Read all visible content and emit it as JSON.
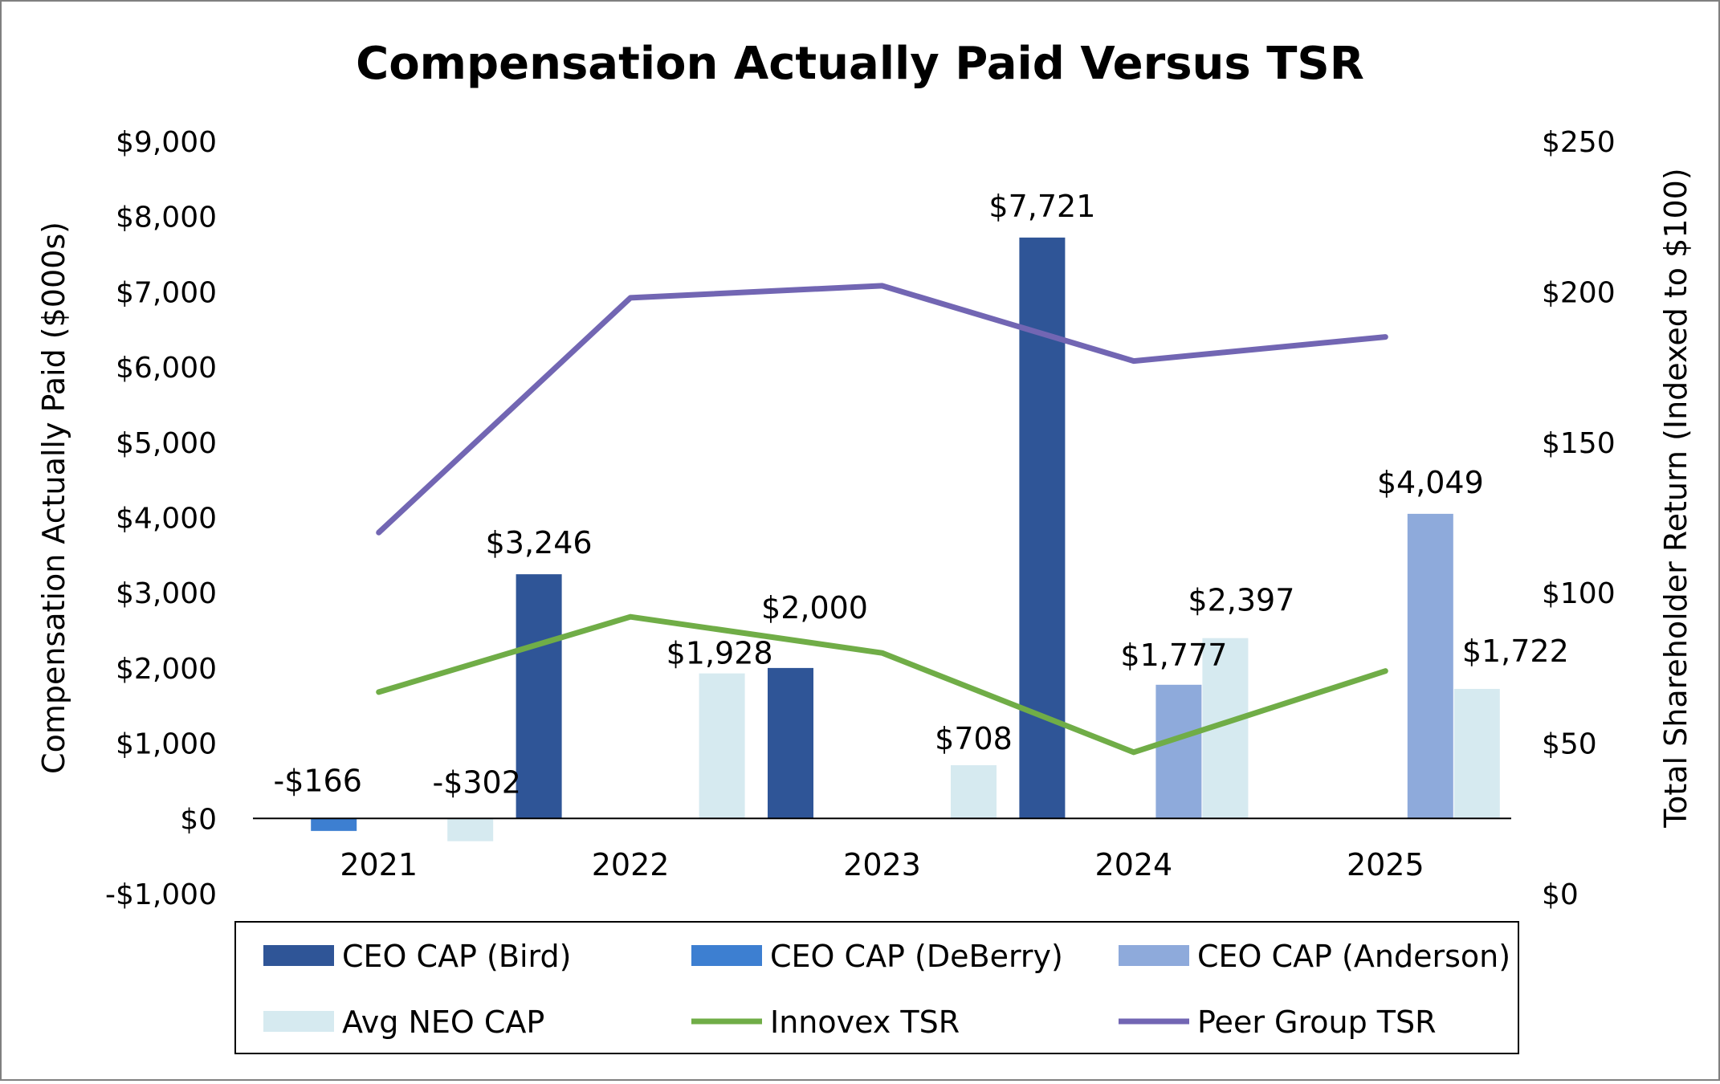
{
  "chart_data": {
    "type": "bar",
    "title": "Compensation Actually Paid Versus TSR",
    "categories": [
      "2021",
      "2022",
      "2023",
      "2024",
      "2025"
    ],
    "left_axis": {
      "label": "Compensation Actually Paid ($000s)",
      "range": [
        -1000,
        9000
      ],
      "ticks": [
        -1000,
        0,
        1000,
        2000,
        3000,
        4000,
        5000,
        6000,
        7000,
        8000,
        9000
      ],
      "tick_labels": [
        "-$1,000",
        "$0",
        "$1,000",
        "$2,000",
        "$3,000",
        "$4,000",
        "$5,000",
        "$6,000",
        "$7,000",
        "$8,000",
        "$9,000"
      ]
    },
    "right_axis": {
      "label": "Total Shareholder Return (Indexed to $100)",
      "range": [
        0,
        250
      ],
      "ticks": [
        0,
        50,
        100,
        150,
        200,
        250
      ],
      "tick_labels": [
        "$0",
        "$50",
        "$100",
        "$150",
        "$200",
        "$250"
      ]
    },
    "bar_series": [
      {
        "name": "CEO CAP (Bird)",
        "color": "#2f5597",
        "values": [
          null,
          3246,
          2000,
          7721,
          null
        ],
        "labels": [
          null,
          "$3,246",
          "$2,000",
          "$7,721",
          null
        ]
      },
      {
        "name": "CEO CAP (DeBerry)",
        "color": "#3d7fd1",
        "values": [
          -166,
          null,
          null,
          null,
          null
        ],
        "labels": [
          "-$166",
          null,
          null,
          null,
          null
        ]
      },
      {
        "name": "CEO CAP (Anderson)",
        "color": "#8eaadb",
        "values": [
          null,
          null,
          null,
          1777,
          4049
        ],
        "labels": [
          null,
          null,
          null,
          "$1,777",
          "$4,049"
        ]
      },
      {
        "name": "Avg NEO CAP",
        "color": "#d6eaf0",
        "values": [
          -302,
          1928,
          708,
          2397,
          1722
        ],
        "labels": [
          "-$302",
          "$1,928",
          "$708",
          "$2,397",
          "$1,722"
        ]
      }
    ],
    "line_series": [
      {
        "name": "Innovex TSR",
        "color": "#70ad47",
        "axis": "right",
        "values": [
          67,
          92,
          80,
          47,
          74
        ]
      },
      {
        "name": "Peer Group TSR",
        "color": "#7266b3",
        "axis": "right",
        "values": [
          120,
          198,
          202,
          177,
          185
        ]
      }
    ],
    "legend": {
      "placement": "bottom",
      "items": [
        "CEO CAP (Bird)",
        "CEO CAP (DeBerry)",
        "CEO CAP (Anderson)",
        "Avg NEO CAP",
        "Innovex TSR",
        "Peer Group TSR"
      ]
    },
    "grid": false
  }
}
